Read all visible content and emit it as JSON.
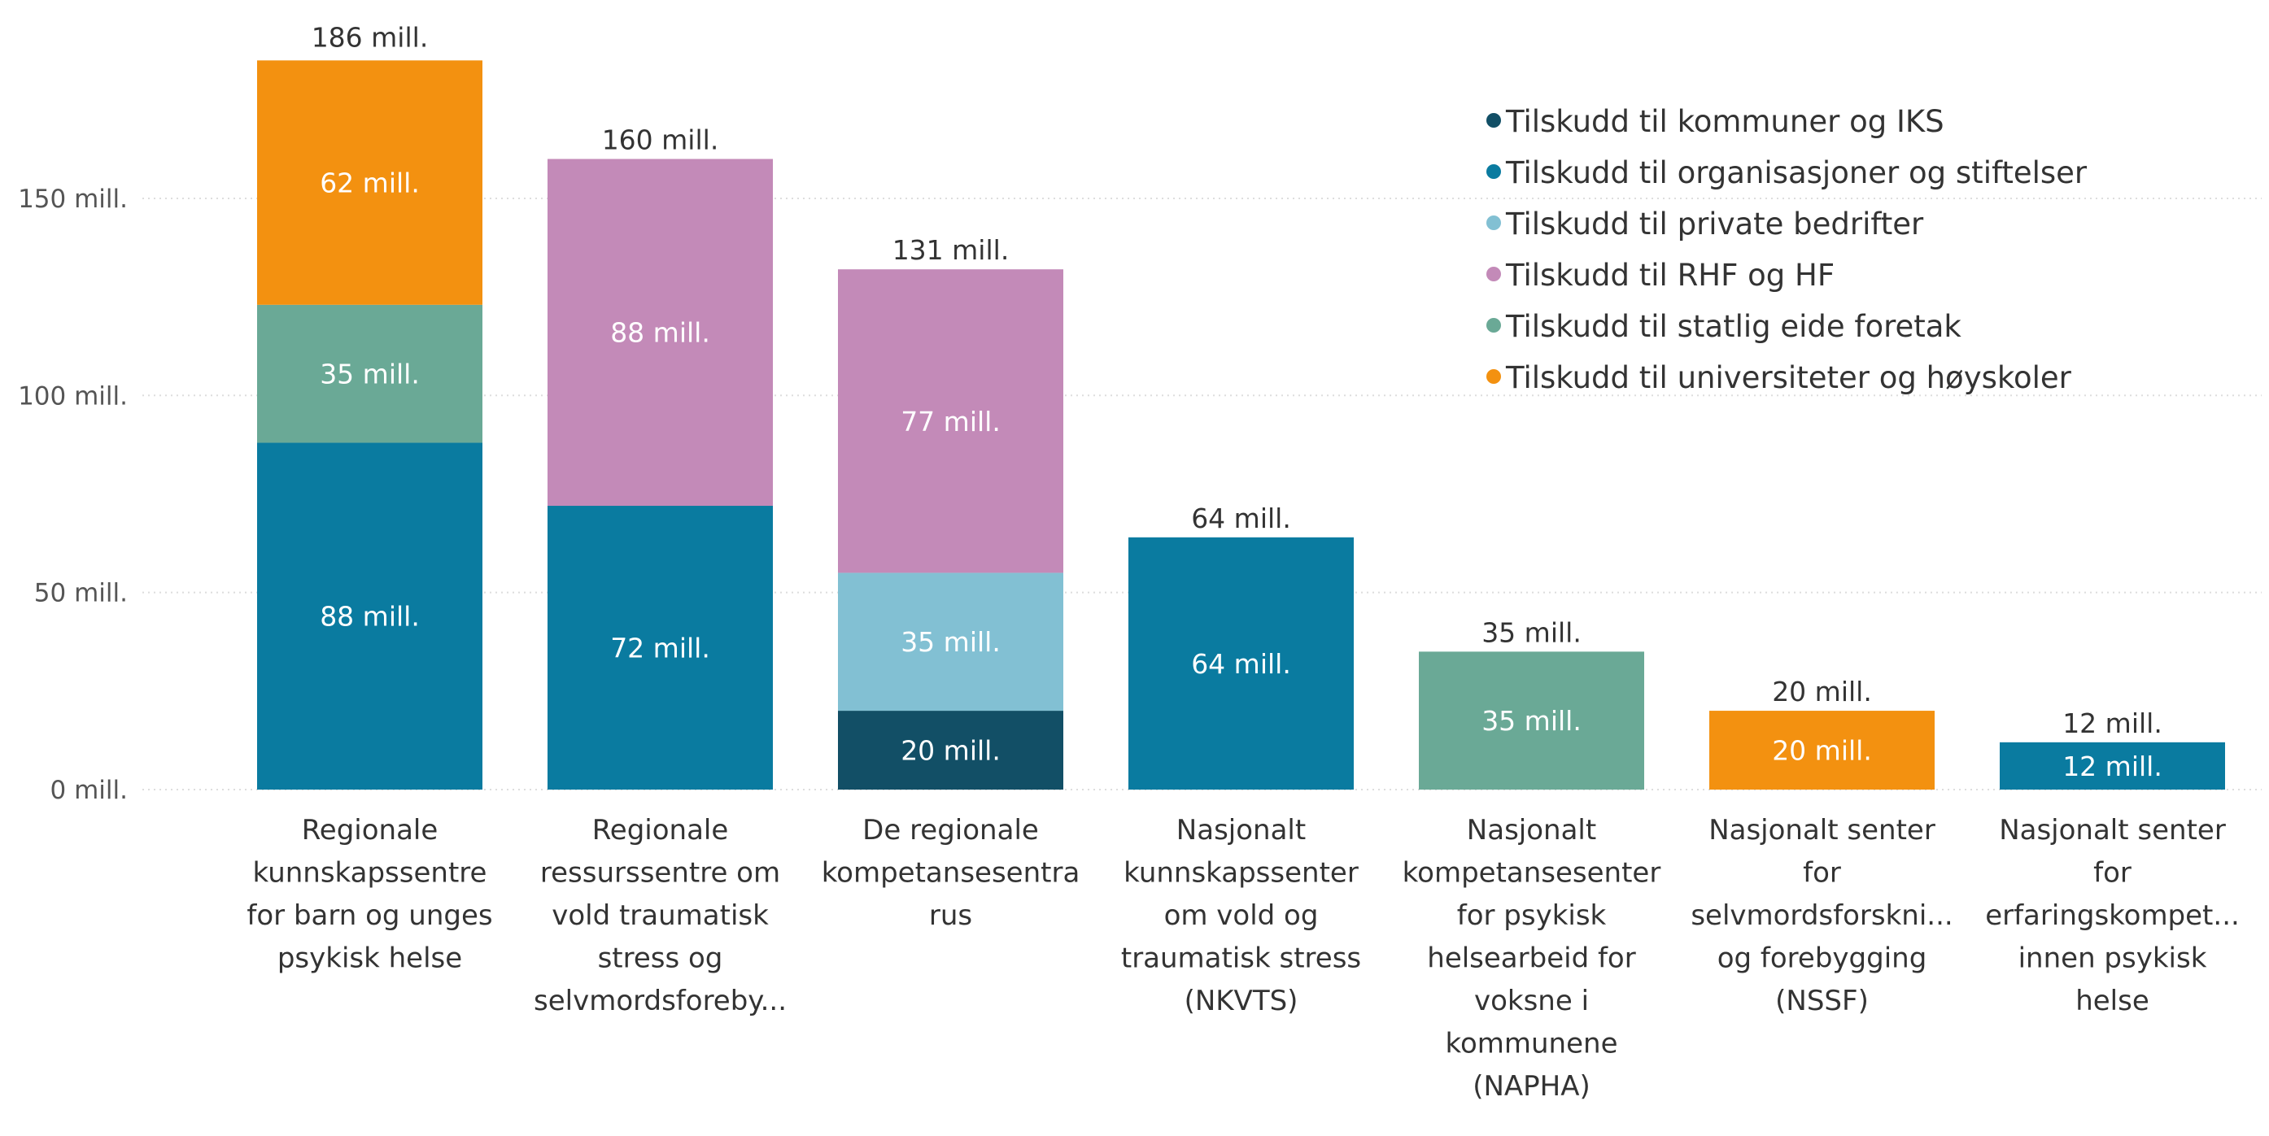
{
  "chart_data": {
    "type": "bar",
    "stacked": true,
    "title": "",
    "xlabel": "",
    "ylabel": "",
    "ylim": [
      0,
      190
    ],
    "yticks": [
      0,
      50,
      100,
      150
    ],
    "ytick_labels": [
      "0 mill.",
      "50 mill.",
      "100 mill.",
      "150 mill."
    ],
    "grid": true,
    "legend_position": "top-right",
    "unit_suffix": " mill.",
    "categories": [
      [
        "Regionale",
        "kunnskapssentre",
        "for barn og unges",
        "psykisk helse"
      ],
      [
        "Regionale",
        "ressurssentre om",
        "vold traumatisk",
        "stress og",
        "selvmordsforeby..."
      ],
      [
        "De regionale",
        "kompetansesentra",
        "rus"
      ],
      [
        "Nasjonalt",
        "kunnskapssenter",
        "om vold og",
        "traumatisk stress",
        "(NKVTS)"
      ],
      [
        "Nasjonalt",
        "kompetansesenter",
        "for psykisk",
        "helsearbeid for",
        "voksne i",
        "kommunene",
        "(NAPHA)"
      ],
      [
        "Nasjonalt senter",
        "for",
        "selvmordsforskni...",
        "og forebygging",
        "(NSSF)"
      ],
      [
        "Nasjonalt senter",
        "for",
        "erfaringskompet...",
        "innen psykisk",
        "helse"
      ]
    ],
    "totals": [
      186,
      160,
      131,
      64,
      35,
      20,
      12
    ],
    "series": [
      {
        "name": "Tilskudd til kommuner og IKS",
        "color": "#124F66",
        "values": [
          0,
          0,
          20,
          0,
          0,
          0,
          0
        ]
      },
      {
        "name": "Tilskudd til organisasjoner og stiftelser",
        "color": "#0A7BA0",
        "values": [
          88,
          72,
          0,
          64,
          0,
          0,
          12
        ]
      },
      {
        "name": "Tilskudd til private bedrifter",
        "color": "#82C0D3",
        "values": [
          0,
          0,
          35,
          0,
          0,
          0,
          0
        ]
      },
      {
        "name": "Tilskudd til RHF og HF",
        "color": "#C38AB8",
        "values": [
          0,
          88,
          77,
          0,
          0,
          0,
          0
        ]
      },
      {
        "name": "Tilskudd til statlig eide foretak",
        "color": "#6AA996",
        "values": [
          35,
          0,
          0,
          0,
          35,
          0,
          0
        ]
      },
      {
        "name": "Tilskudd til universiteter og høyskoler",
        "color": "#F39110",
        "values": [
          62,
          0,
          0,
          0,
          0,
          20,
          0
        ]
      }
    ]
  }
}
